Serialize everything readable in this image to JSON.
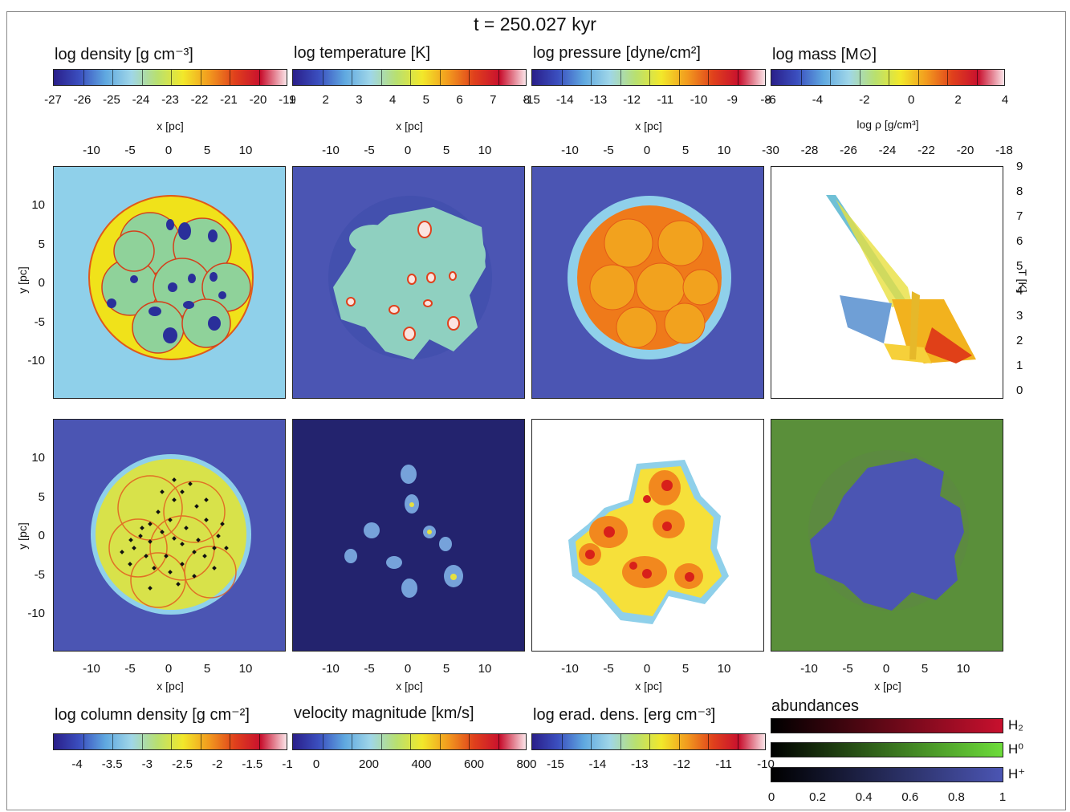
{
  "title": "t = 250.027 kyr",
  "top_colorbars": [
    {
      "label": "log density [g cm⁻³]",
      "ticks": [
        "-27",
        "-26",
        "-25",
        "-24",
        "-23",
        "-22",
        "-21",
        "-20",
        "-19"
      ]
    },
    {
      "label": "log temperature [K]",
      "ticks": [
        "1",
        "2",
        "3",
        "4",
        "5",
        "6",
        "7",
        "8"
      ]
    },
    {
      "label": "log pressure [dyne/cm²]",
      "ticks": [
        "-15",
        "-14",
        "-13",
        "-12",
        "-11",
        "-10",
        "-9",
        "-8"
      ]
    },
    {
      "label": "log mass [M⊙]",
      "ticks": [
        "-6",
        "-4",
        "-2",
        "0",
        "2",
        "4"
      ]
    }
  ],
  "bottom_colorbars": [
    {
      "label": "log column density [g cm⁻²]",
      "ticks": [
        "-4",
        "-3.5",
        "-3",
        "-2.5",
        "-2",
        "-1.5",
        "-1"
      ]
    },
    {
      "label": "velocity magnitude [km/s]",
      "ticks": [
        "0",
        "200",
        "400",
        "600",
        "800"
      ]
    },
    {
      "label": "log erad. dens. [erg cm⁻³]",
      "ticks": [
        "-15",
        "-14",
        "-13",
        "-12",
        "-11",
        "-10"
      ]
    }
  ],
  "axes": {
    "x_label": "x [pc]",
    "y_label": "y [pc]",
    "x_ticks": [
      "-10",
      "-5",
      "0",
      "5",
      "10"
    ],
    "y_ticks": [
      "10",
      "5",
      "0",
      "-5",
      "-10"
    ],
    "phase_x_label": "log ρ [g/cm³]",
    "phase_x_ticks": [
      "-30",
      "-28",
      "-26",
      "-24",
      "-22",
      "-20",
      "-18"
    ],
    "phase_y_label": "T [K]",
    "phase_y_ticks": [
      "9",
      "8",
      "7",
      "6",
      "5",
      "4",
      "3",
      "2",
      "1",
      "0"
    ]
  },
  "abundances": {
    "label": "abundances",
    "species": [
      "H₂",
      "H⁰",
      "H⁺"
    ],
    "ticks": [
      "0",
      "0.2",
      "0.4",
      "0.6",
      "0.8",
      "1"
    ]
  },
  "colors": {
    "jet_bg": "#8fd0ea",
    "dark_blue": "#2a2f9a",
    "mid_blue": "#4b55b3",
    "navy": "#23236e",
    "green": "#5a8f3a"
  }
}
